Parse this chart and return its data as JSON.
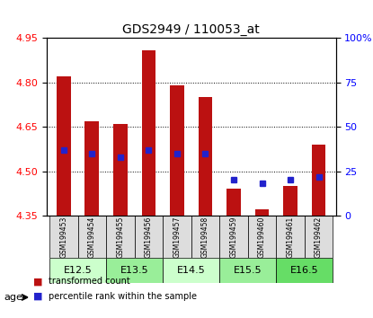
{
  "title": "GDS2949 / 110053_at",
  "samples": [
    "GSM199453",
    "GSM199454",
    "GSM199455",
    "GSM199456",
    "GSM199457",
    "GSM199458",
    "GSM199459",
    "GSM199460",
    "GSM199461",
    "GSM199462"
  ],
  "transformed_count": [
    4.82,
    4.67,
    4.66,
    4.91,
    4.79,
    4.75,
    4.44,
    4.37,
    4.45,
    4.59
  ],
  "percentile_rank": [
    37,
    35,
    33,
    37,
    35,
    35,
    20,
    18,
    20,
    22
  ],
  "ylim_left": [
    4.35,
    4.95
  ],
  "ylim_right": [
    0,
    100
  ],
  "yticks_left": [
    4.35,
    4.5,
    4.65,
    4.8,
    4.95
  ],
  "yticks_right": [
    0,
    25,
    50,
    75,
    100
  ],
  "bar_color": "#bb1111",
  "dot_color": "#2222cc",
  "grid_color": "#000000",
  "age_groups": [
    {
      "label": "E12.5",
      "samples": [
        0,
        1
      ],
      "color": "#ccffcc"
    },
    {
      "label": "E13.5",
      "samples": [
        2,
        3
      ],
      "color": "#99ee99"
    },
    {
      "label": "E14.5",
      "samples": [
        4,
        5
      ],
      "color": "#ccffcc"
    },
    {
      "label": "E15.5",
      "samples": [
        6,
        7
      ],
      "color": "#99ee99"
    },
    {
      "label": "E16.5",
      "samples": [
        8,
        9
      ],
      "color": "#66dd66"
    }
  ],
  "legend_bar_label": "transformed count",
  "legend_dot_label": "percentile rank within the sample",
  "xlabel_age": "age",
  "bar_bottom": 4.35,
  "dot_scale": 0.6
}
